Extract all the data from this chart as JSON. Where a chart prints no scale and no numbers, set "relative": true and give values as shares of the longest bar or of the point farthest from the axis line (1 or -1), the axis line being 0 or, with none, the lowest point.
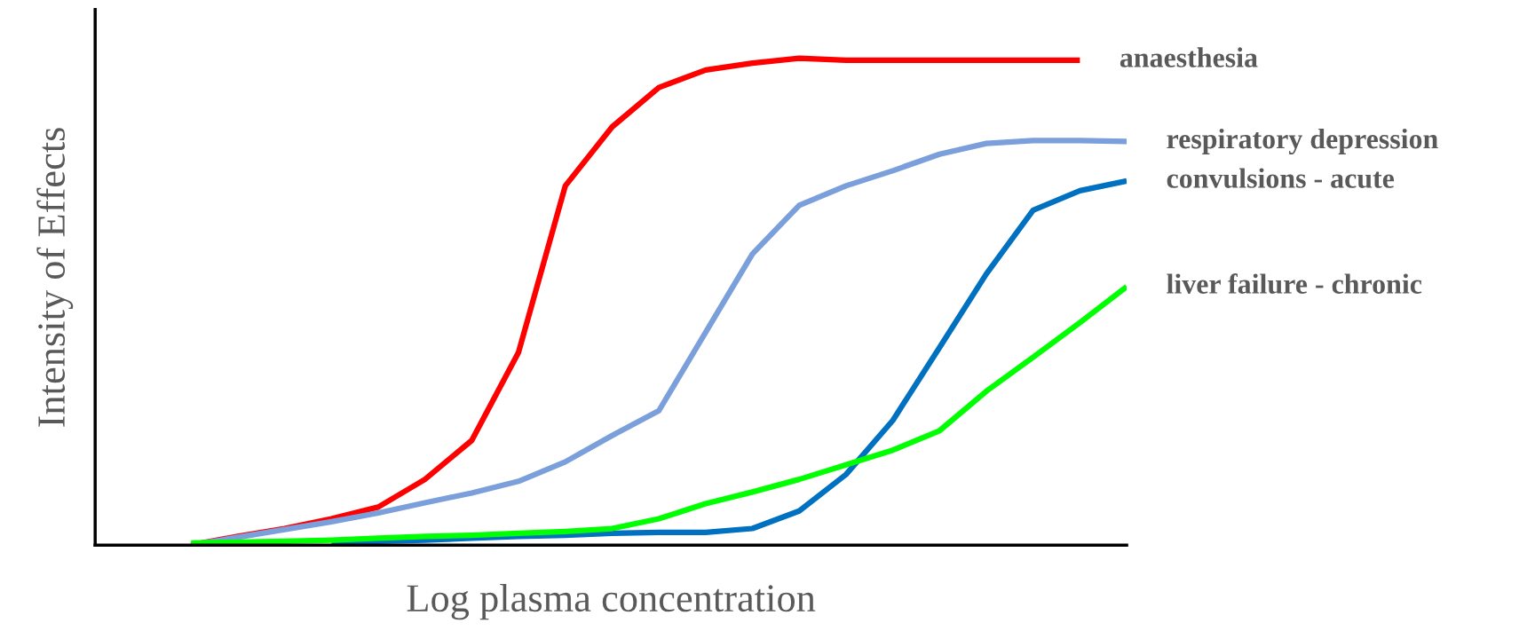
{
  "chart_data": {
    "type": "line",
    "relative": true,
    "xlabel": "Log plasma concentration",
    "ylabel": "Intensity of Effects",
    "legend": false,
    "grid": false,
    "marker": "none",
    "line_style": "solid",
    "categories": [
      null,
      null,
      null,
      null,
      null,
      null,
      null,
      null,
      null,
      null,
      null,
      null,
      null,
      null,
      null,
      null,
      null,
      null,
      null,
      null,
      null
    ],
    "series": [
      {
        "name": "anaesthesia",
        "color": "#ff0000",
        "values": [
          0,
          0.018,
          0.034,
          0.054,
          0.078,
          0.135,
          0.215,
          0.396,
          0.738,
          0.859,
          0.94,
          0.976,
          0.99,
          1.0,
          0.996,
          0.996,
          0.996,
          0.996,
          0.996,
          0.996,
          null
        ]
      },
      {
        "name": "respiratory depression",
        "color": "#7b9fdb",
        "values": [
          0,
          0.016,
          0.032,
          0.048,
          0.066,
          0.087,
          0.107,
          0.131,
          0.171,
          0.225,
          0.276,
          0.437,
          0.598,
          0.698,
          0.738,
          0.769,
          0.803,
          0.825,
          0.831,
          0.831,
          0.829
        ]
      },
      {
        "name": "convulsions - acute",
        "color": "#0070c0",
        "values": [
          null,
          null,
          null,
          0.006,
          0.008,
          0.01,
          0.014,
          0.018,
          0.02,
          0.024,
          0.026,
          0.026,
          0.034,
          0.07,
          0.145,
          0.256,
          0.406,
          0.557,
          0.688,
          0.728,
          0.748
        ]
      },
      {
        "name": "liver failure - chronic",
        "color": "#00ff00",
        "values": [
          0.004,
          0.006,
          0.008,
          0.01,
          0.014,
          0.018,
          0.02,
          0.024,
          0.028,
          0.034,
          0.054,
          0.085,
          0.109,
          0.135,
          0.165,
          0.195,
          0.235,
          0.316,
          0.386,
          0.457,
          0.531
        ]
      }
    ]
  }
}
